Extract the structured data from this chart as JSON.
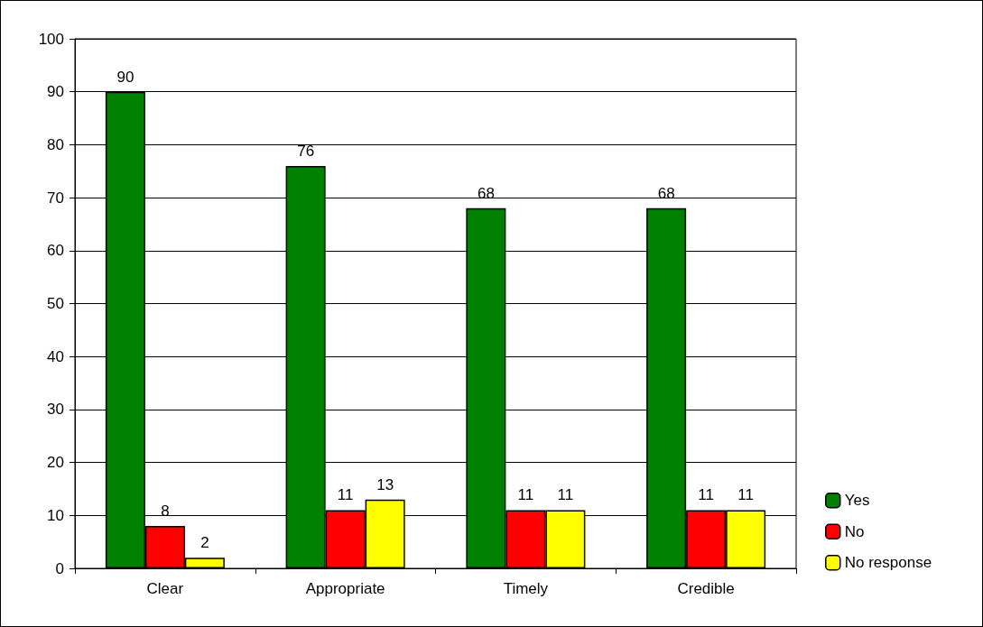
{
  "chart_data": {
    "type": "bar",
    "categories": [
      "Clear",
      "Appropriate",
      "Timely",
      "Credible"
    ],
    "series": [
      {
        "name": "Yes",
        "color": "#008000",
        "values": [
          90,
          76,
          68,
          68
        ]
      },
      {
        "name": "No",
        "color": "#ff0000",
        "values": [
          8,
          11,
          11,
          11
        ]
      },
      {
        "name": "No response",
        "color": "#ffff00",
        "values": [
          2,
          13,
          11,
          11
        ]
      }
    ],
    "ylim": [
      0,
      100
    ],
    "yticks": [
      0,
      10,
      20,
      30,
      40,
      50,
      60,
      70,
      80,
      90,
      100
    ],
    "grid": "y",
    "legend": "right",
    "data_labels": true
  }
}
